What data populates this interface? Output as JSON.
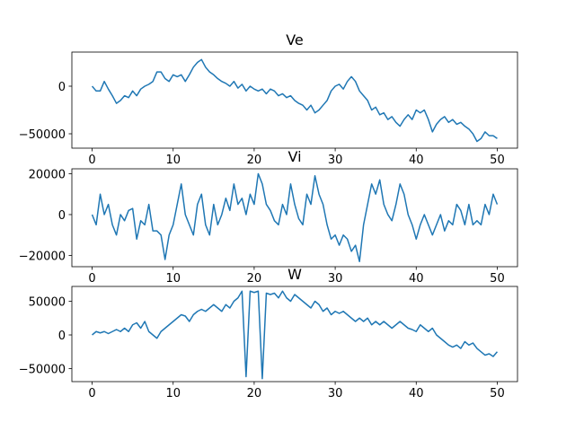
{
  "chart_data": [
    {
      "type": "line",
      "title": "Ve",
      "x": [
        0,
        0.5,
        1,
        1.5,
        2,
        2.5,
        3,
        3.5,
        4,
        4.5,
        5,
        5.5,
        6,
        6.5,
        7,
        7.5,
        8,
        8.5,
        9,
        9.5,
        10,
        10.5,
        11,
        11.5,
        12,
        12.5,
        13,
        13.5,
        14,
        14.5,
        15,
        15.5,
        16,
        16.5,
        17,
        17.5,
        18,
        18.5,
        19,
        19.5,
        20,
        20.5,
        21,
        21.5,
        22,
        22.5,
        23,
        23.5,
        24,
        24.5,
        25,
        25.5,
        26,
        26.5,
        27,
        27.5,
        28,
        28.5,
        29,
        29.5,
        30,
        30.5,
        31,
        31.5,
        32,
        32.5,
        33,
        33.5,
        34,
        34.5,
        35,
        35.5,
        36,
        36.5,
        37,
        37.5,
        38,
        38.5,
        39,
        39.5,
        40,
        40.5,
        41,
        41.5,
        42,
        42.5,
        43,
        43.5,
        44,
        44.5,
        45,
        45.5,
        46,
        46.5,
        47,
        47.5,
        48,
        48.5,
        49,
        49.5,
        50
      ],
      "series": [
        {
          "color": "#1f77b4",
          "values": [
            0,
            -5000,
            -5000,
            5000,
            -3000,
            -10000,
            -18000,
            -15000,
            -10000,
            -12000,
            -5000,
            -10000,
            -3000,
            0,
            2000,
            5000,
            15000,
            15000,
            8000,
            5000,
            12000,
            10000,
            12000,
            5000,
            12000,
            20000,
            25000,
            28000,
            20000,
            15000,
            12000,
            8000,
            5000,
            3000,
            0,
            5000,
            -2000,
            2000,
            -5000,
            0,
            -3000,
            -5000,
            -3000,
            -8000,
            -3000,
            -5000,
            -10000,
            -8000,
            -12000,
            -10000,
            -15000,
            -18000,
            -20000,
            -25000,
            -20000,
            -28000,
            -25000,
            -20000,
            -15000,
            -5000,
            0,
            2000,
            -3000,
            5000,
            10000,
            5000,
            -5000,
            -10000,
            -15000,
            -25000,
            -22000,
            -30000,
            -28000,
            -35000,
            -32000,
            -38000,
            -42000,
            -35000,
            -30000,
            -35000,
            -25000,
            -28000,
            -25000,
            -35000,
            -48000,
            -40000,
            -35000,
            -32000,
            -38000,
            -35000,
            -40000,
            -38000,
            -42000,
            -45000,
            -50000,
            -58000,
            -55000,
            -48000,
            -52000,
            -52000,
            -55000
          ]
        }
      ],
      "xlim": [
        -2.5,
        52.5
      ],
      "xticks": [
        0,
        10,
        20,
        30,
        40,
        50
      ],
      "ylim": [
        -65100,
        35850
      ],
      "yticks": [
        {
          "value": -50000,
          "label": "−50000"
        },
        0
      ]
    },
    {
      "type": "line",
      "title": "Vi",
      "x": [
        0,
        0.5,
        1,
        1.5,
        2,
        2.5,
        3,
        3.5,
        4,
        4.5,
        5,
        5.5,
        6,
        6.5,
        7,
        7.5,
        8,
        8.5,
        9,
        9.5,
        10,
        10.5,
        11,
        11.5,
        12,
        12.5,
        13,
        13.5,
        14,
        14.5,
        15,
        15.5,
        16,
        16.5,
        17,
        17.5,
        18,
        18.5,
        19,
        19.5,
        20,
        20.5,
        21,
        21.5,
        22,
        22.5,
        23,
        23.5,
        24,
        24.5,
        25,
        25.5,
        26,
        26.5,
        27,
        27.5,
        28,
        28.5,
        29,
        29.5,
        30,
        30.5,
        31,
        31.5,
        32,
        32.5,
        33,
        33.5,
        34,
        34.5,
        35,
        35.5,
        36,
        36.5,
        37,
        37.5,
        38,
        38.5,
        39,
        39.5,
        40,
        40.5,
        41,
        41.5,
        42,
        42.5,
        43,
        43.5,
        44,
        44.5,
        45,
        45.5,
        46,
        46.5,
        47,
        47.5,
        48,
        48.5,
        49,
        49.5,
        50
      ],
      "series": [
        {
          "color": "#1f77b4",
          "values": [
            0,
            -5000,
            10000,
            0,
            5000,
            -5000,
            -10000,
            0,
            -3000,
            2000,
            3000,
            -12000,
            -3000,
            -5000,
            5000,
            -8000,
            -8000,
            -10000,
            -22000,
            -10000,
            -5000,
            5000,
            15000,
            0,
            -5000,
            -10000,
            5000,
            10000,
            -5000,
            -10000,
            5000,
            -5000,
            0,
            8000,
            2000,
            15000,
            5000,
            8000,
            0,
            10000,
            5000,
            20000,
            15000,
            5000,
            2000,
            -3000,
            -5000,
            5000,
            0,
            15000,
            5000,
            -2000,
            -5000,
            10000,
            5000,
            19000,
            10000,
            5000,
            -5000,
            -12000,
            -10000,
            -15000,
            -10000,
            -12000,
            -18000,
            -15000,
            -23000,
            -5000,
            5000,
            15000,
            10000,
            17000,
            5000,
            0,
            -3000,
            5000,
            15000,
            10000,
            0,
            -5000,
            -12000,
            -5000,
            0,
            -5000,
            -10000,
            -5000,
            0,
            -8000,
            -3000,
            -5000,
            5000,
            2000,
            -5000,
            5000,
            -5000,
            -3000,
            -5000,
            5000,
            0,
            10000,
            5000
          ]
        }
      ],
      "xlim": [
        -2.5,
        52.5
      ],
      "xticks": [
        0,
        10,
        20,
        30,
        40,
        50
      ],
      "ylim": [
        -25500,
        22400
      ],
      "yticks": [
        {
          "value": -20000,
          "label": "−20000"
        },
        0,
        20000
      ]
    },
    {
      "type": "line",
      "title": "W",
      "x": [
        0,
        0.5,
        1,
        1.5,
        2,
        2.5,
        3,
        3.5,
        4,
        4.5,
        5,
        5.5,
        6,
        6.5,
        7,
        7.5,
        8,
        8.5,
        9,
        9.5,
        10,
        10.5,
        11,
        11.5,
        12,
        12.5,
        13,
        13.5,
        14,
        14.5,
        15,
        15.5,
        16,
        16.5,
        17,
        17.5,
        18,
        18.5,
        19,
        19.5,
        20,
        20.5,
        21,
        21.5,
        22,
        22.5,
        23,
        23.5,
        24,
        24.5,
        25,
        25.5,
        26,
        26.5,
        27,
        27.5,
        28,
        28.5,
        29,
        29.5,
        30,
        30.5,
        31,
        31.5,
        32,
        32.5,
        33,
        33.5,
        34,
        34.5,
        35,
        35.5,
        36,
        36.5,
        37,
        37.5,
        38,
        38.5,
        39,
        39.5,
        40,
        40.5,
        41,
        41.5,
        42,
        42.5,
        43,
        43.5,
        44,
        44.5,
        45,
        45.5,
        46,
        46.5,
        47,
        47.5,
        48,
        48.5,
        49,
        49.5,
        50
      ],
      "series": [
        {
          "color": "#1f77b4",
          "values": [
            0,
            5000,
            3000,
            5000,
            2000,
            5000,
            8000,
            5000,
            10000,
            5000,
            15000,
            18000,
            10000,
            20000,
            5000,
            0,
            -5000,
            5000,
            10000,
            15000,
            20000,
            25000,
            30000,
            28000,
            20000,
            30000,
            35000,
            38000,
            35000,
            40000,
            45000,
            40000,
            35000,
            45000,
            40000,
            50000,
            55000,
            65000,
            -62000,
            65000,
            63000,
            65000,
            -65000,
            62000,
            60000,
            62000,
            55000,
            65000,
            55000,
            50000,
            60000,
            55000,
            50000,
            45000,
            40000,
            50000,
            45000,
            35000,
            40000,
            30000,
            35000,
            32000,
            35000,
            30000,
            25000,
            20000,
            25000,
            20000,
            25000,
            15000,
            20000,
            15000,
            20000,
            15000,
            10000,
            15000,
            20000,
            15000,
            10000,
            8000,
            5000,
            15000,
            10000,
            5000,
            10000,
            0,
            -5000,
            -10000,
            -15000,
            -18000,
            -15000,
            -20000,
            -10000,
            -15000,
            -12000,
            -20000,
            -25000,
            -30000,
            -28000,
            -32000,
            -25000
          ]
        }
      ],
      "xlim": [
        -2.5,
        52.5
      ],
      "xticks": [
        0,
        10,
        20,
        30,
        40,
        50
      ],
      "ylim": [
        -69300,
        72000
      ],
      "yticks": [
        {
          "value": -50000,
          "label": "−50000"
        },
        0,
        50000
      ]
    }
  ]
}
